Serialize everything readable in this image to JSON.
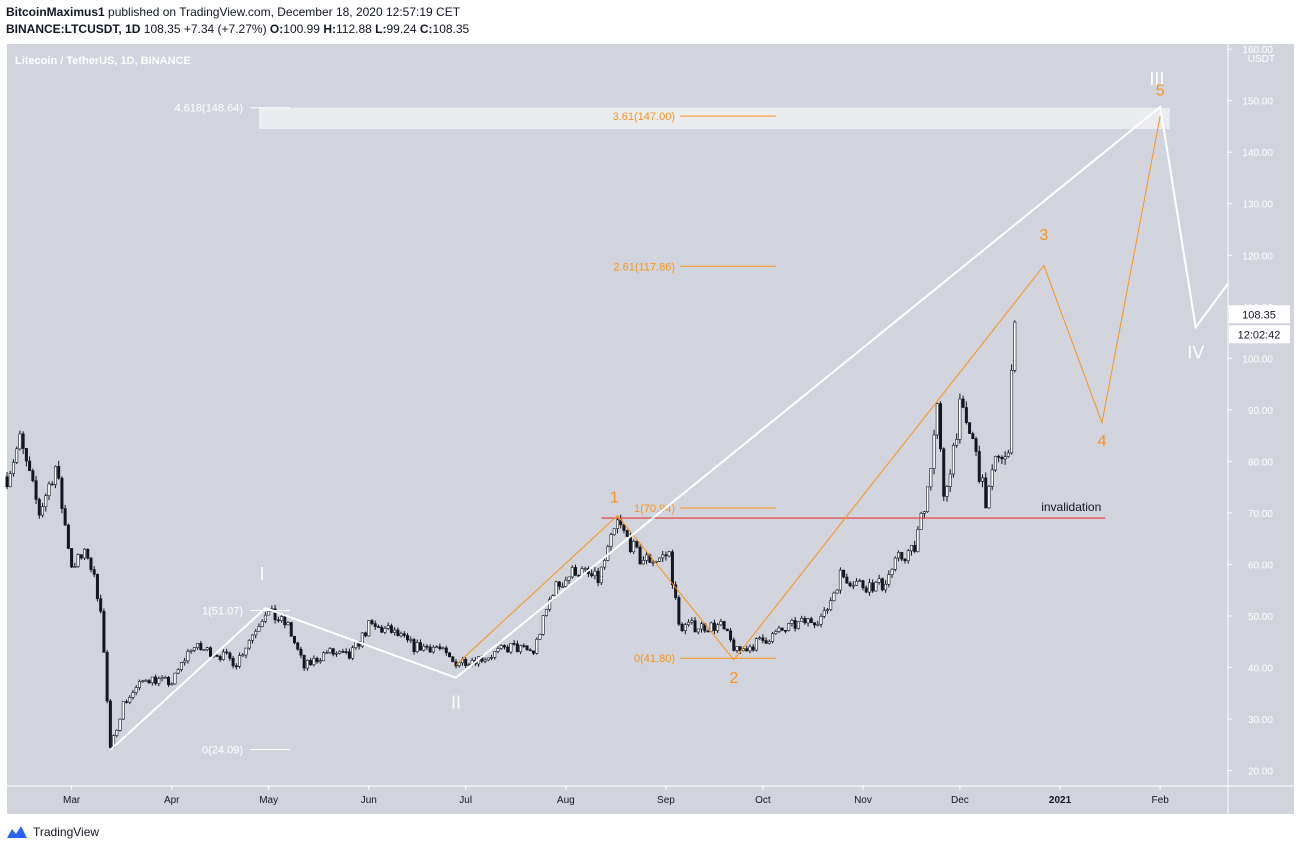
{
  "header": {
    "author": "BitcoinMaximus1",
    "published_text": " published on TradingView.com, December 18, 2020 12:57:19 CET",
    "symbol": "BINANCE:LTCUSDT, 1D",
    "last": "108.35",
    "change": "+7.34 (+7.27%)",
    "o_label": "O:",
    "o_value": "100.99",
    "h_label": "H:",
    "h_value": "112.88",
    "l_label": "L:",
    "l_value": "99.24",
    "c_label": "C:",
    "c_value": "108.35"
  },
  "footer": {
    "brand": "TradingView"
  },
  "colors": {
    "plot_bg": "#d1d4dc",
    "candle": "#131722",
    "white_wave": "#ffffff",
    "orange": "#f7931a",
    "invalidation": "#e53935",
    "axis_text": "#131722",
    "fib_text_white": "#ffffff"
  },
  "chart_data": {
    "type": "candlestick",
    "title": "Litecoin / TetherUS, 1D, BINANCE",
    "ylabel": "USDT",
    "y_scale": "linear",
    "ylim": [
      17,
      161
    ],
    "y_ticks": [
      "20.00",
      "30.00",
      "40.00",
      "50.00",
      "60.00",
      "70.00",
      "80.00",
      "90.00",
      "100.00",
      "110.00",
      "120.00",
      "130.00",
      "140.00",
      "150.00",
      "160.00"
    ],
    "x_ticks": [
      "Mar",
      "Apr",
      "May",
      "Jun",
      "Jul",
      "Aug",
      "Sep",
      "Oct",
      "Nov",
      "Dec",
      "2021",
      "Feb"
    ],
    "x_tick_dates": [
      "2020-03-01",
      "2020-04-01",
      "2020-05-01",
      "2020-06-01",
      "2020-07-01",
      "2020-08-01",
      "2020-09-01",
      "2020-10-01",
      "2020-11-01",
      "2020-12-01",
      "2021-01-01",
      "2021-02-01"
    ],
    "x_range": [
      "2020-02-10",
      "2021-02-22"
    ],
    "last_price_label": "108.35",
    "countdown_label": "12:02:42",
    "price_path": [
      [
        "2020-02-10",
        77
      ],
      [
        "2020-02-14",
        84
      ],
      [
        "2020-02-20",
        70
      ],
      [
        "2020-02-25",
        79
      ],
      [
        "2020-03-01",
        60
      ],
      [
        "2020-03-06",
        62
      ],
      [
        "2020-03-10",
        52
      ],
      [
        "2020-03-13",
        24
      ],
      [
        "2020-03-17",
        33
      ],
      [
        "2020-03-24",
        38
      ],
      [
        "2020-04-01",
        37
      ],
      [
        "2020-04-07",
        44
      ],
      [
        "2020-04-14",
        43
      ],
      [
        "2020-04-21",
        41
      ],
      [
        "2020-04-30",
        51
      ],
      [
        "2020-05-07",
        48
      ],
      [
        "2020-05-12",
        40
      ],
      [
        "2020-05-19",
        43
      ],
      [
        "2020-05-26",
        42
      ],
      [
        "2020-06-01",
        48
      ],
      [
        "2020-06-08",
        47
      ],
      [
        "2020-06-15",
        44
      ],
      [
        "2020-06-22",
        44
      ],
      [
        "2020-06-27",
        41
      ],
      [
        "2020-07-07",
        42
      ],
      [
        "2020-07-15",
        44
      ],
      [
        "2020-07-22",
        43
      ],
      [
        "2020-07-28",
        55
      ],
      [
        "2020-08-04",
        59
      ],
      [
        "2020-08-11",
        57
      ],
      [
        "2020-08-17",
        68
      ],
      [
        "2020-08-24",
        61
      ],
      [
        "2020-08-29",
        61
      ],
      [
        "2020-09-02",
        62
      ],
      [
        "2020-09-05",
        48
      ],
      [
        "2020-09-10",
        48
      ],
      [
        "2020-09-18",
        48
      ],
      [
        "2020-09-23",
        43
      ],
      [
        "2020-09-30",
        45
      ],
      [
        "2020-10-10",
        48
      ],
      [
        "2020-10-20",
        50
      ],
      [
        "2020-10-25",
        58
      ],
      [
        "2020-11-01",
        56
      ],
      [
        "2020-11-07",
        56
      ],
      [
        "2020-11-12",
        61
      ],
      [
        "2020-11-17",
        63
      ],
      [
        "2020-11-21",
        75
      ],
      [
        "2020-11-24",
        90
      ],
      [
        "2020-11-26",
        72
      ],
      [
        "2020-12-01",
        90
      ],
      [
        "2020-12-05",
        84
      ],
      [
        "2020-12-09",
        72
      ],
      [
        "2020-12-13",
        82
      ],
      [
        "2020-12-16",
        80
      ],
      [
        "2020-12-17",
        100
      ],
      [
        "2020-12-18",
        108.35
      ]
    ],
    "invalidation": {
      "label": "invalidation",
      "price": 69,
      "from": "2020-08-12",
      "to": "2021-01-15"
    },
    "target_zone": {
      "from": "2020-04-28",
      "to": "2021-02-04",
      "low": 144.5,
      "high": 148.64
    },
    "fib_levels_white": [
      {
        "label": "4.618(148.64)",
        "price": 148.64
      },
      {
        "label": "1(51.07)",
        "price": 51.07
      },
      {
        "label": "0(24.09)",
        "price": 24.09
      }
    ],
    "fib_levels_orange": [
      {
        "label": "3.61(147.00)",
        "price": 147.0
      },
      {
        "label": "2.61(117.86)",
        "price": 117.86
      },
      {
        "label": "1(70.94)",
        "price": 70.94
      },
      {
        "label": "0(41.80)",
        "price": 41.8
      }
    ],
    "white_wave": {
      "points": [
        [
          "2020-03-13",
          24
        ],
        [
          "2020-04-30",
          51.5
        ],
        [
          "2020-06-28",
          38
        ],
        [
          "2021-02-01",
          148.8
        ],
        [
          "2021-02-12",
          106
        ],
        [
          "2021-02-22",
          114.5
        ]
      ],
      "labels": [
        {
          "text": "I",
          "date": "2020-04-29",
          "price": 57
        },
        {
          "text": "II",
          "date": "2020-06-28",
          "price": 32
        },
        {
          "text": "III",
          "date": "2021-01-31",
          "price": 153
        },
        {
          "text": "IV",
          "date": "2021-02-12",
          "price": 100
        }
      ]
    },
    "orange_wave": {
      "points": [
        [
          "2020-06-28",
          40.5
        ],
        [
          "2020-08-17",
          69.5
        ],
        [
          "2020-09-22",
          41.5
        ],
        [
          "2020-12-27",
          118
        ],
        [
          "2021-01-14",
          87.5
        ],
        [
          "2021-02-01",
          147
        ]
      ],
      "labels": [
        {
          "text": "1",
          "date": "2020-08-16",
          "price": 72
        },
        {
          "text": "2",
          "date": "2020-09-22",
          "price": 37
        },
        {
          "text": "3",
          "date": "2020-12-27",
          "price": 123
        },
        {
          "text": "4",
          "date": "2021-01-14",
          "price": 83
        },
        {
          "text": "5",
          "date": "2021-02-01",
          "price": 151
        }
      ]
    }
  }
}
